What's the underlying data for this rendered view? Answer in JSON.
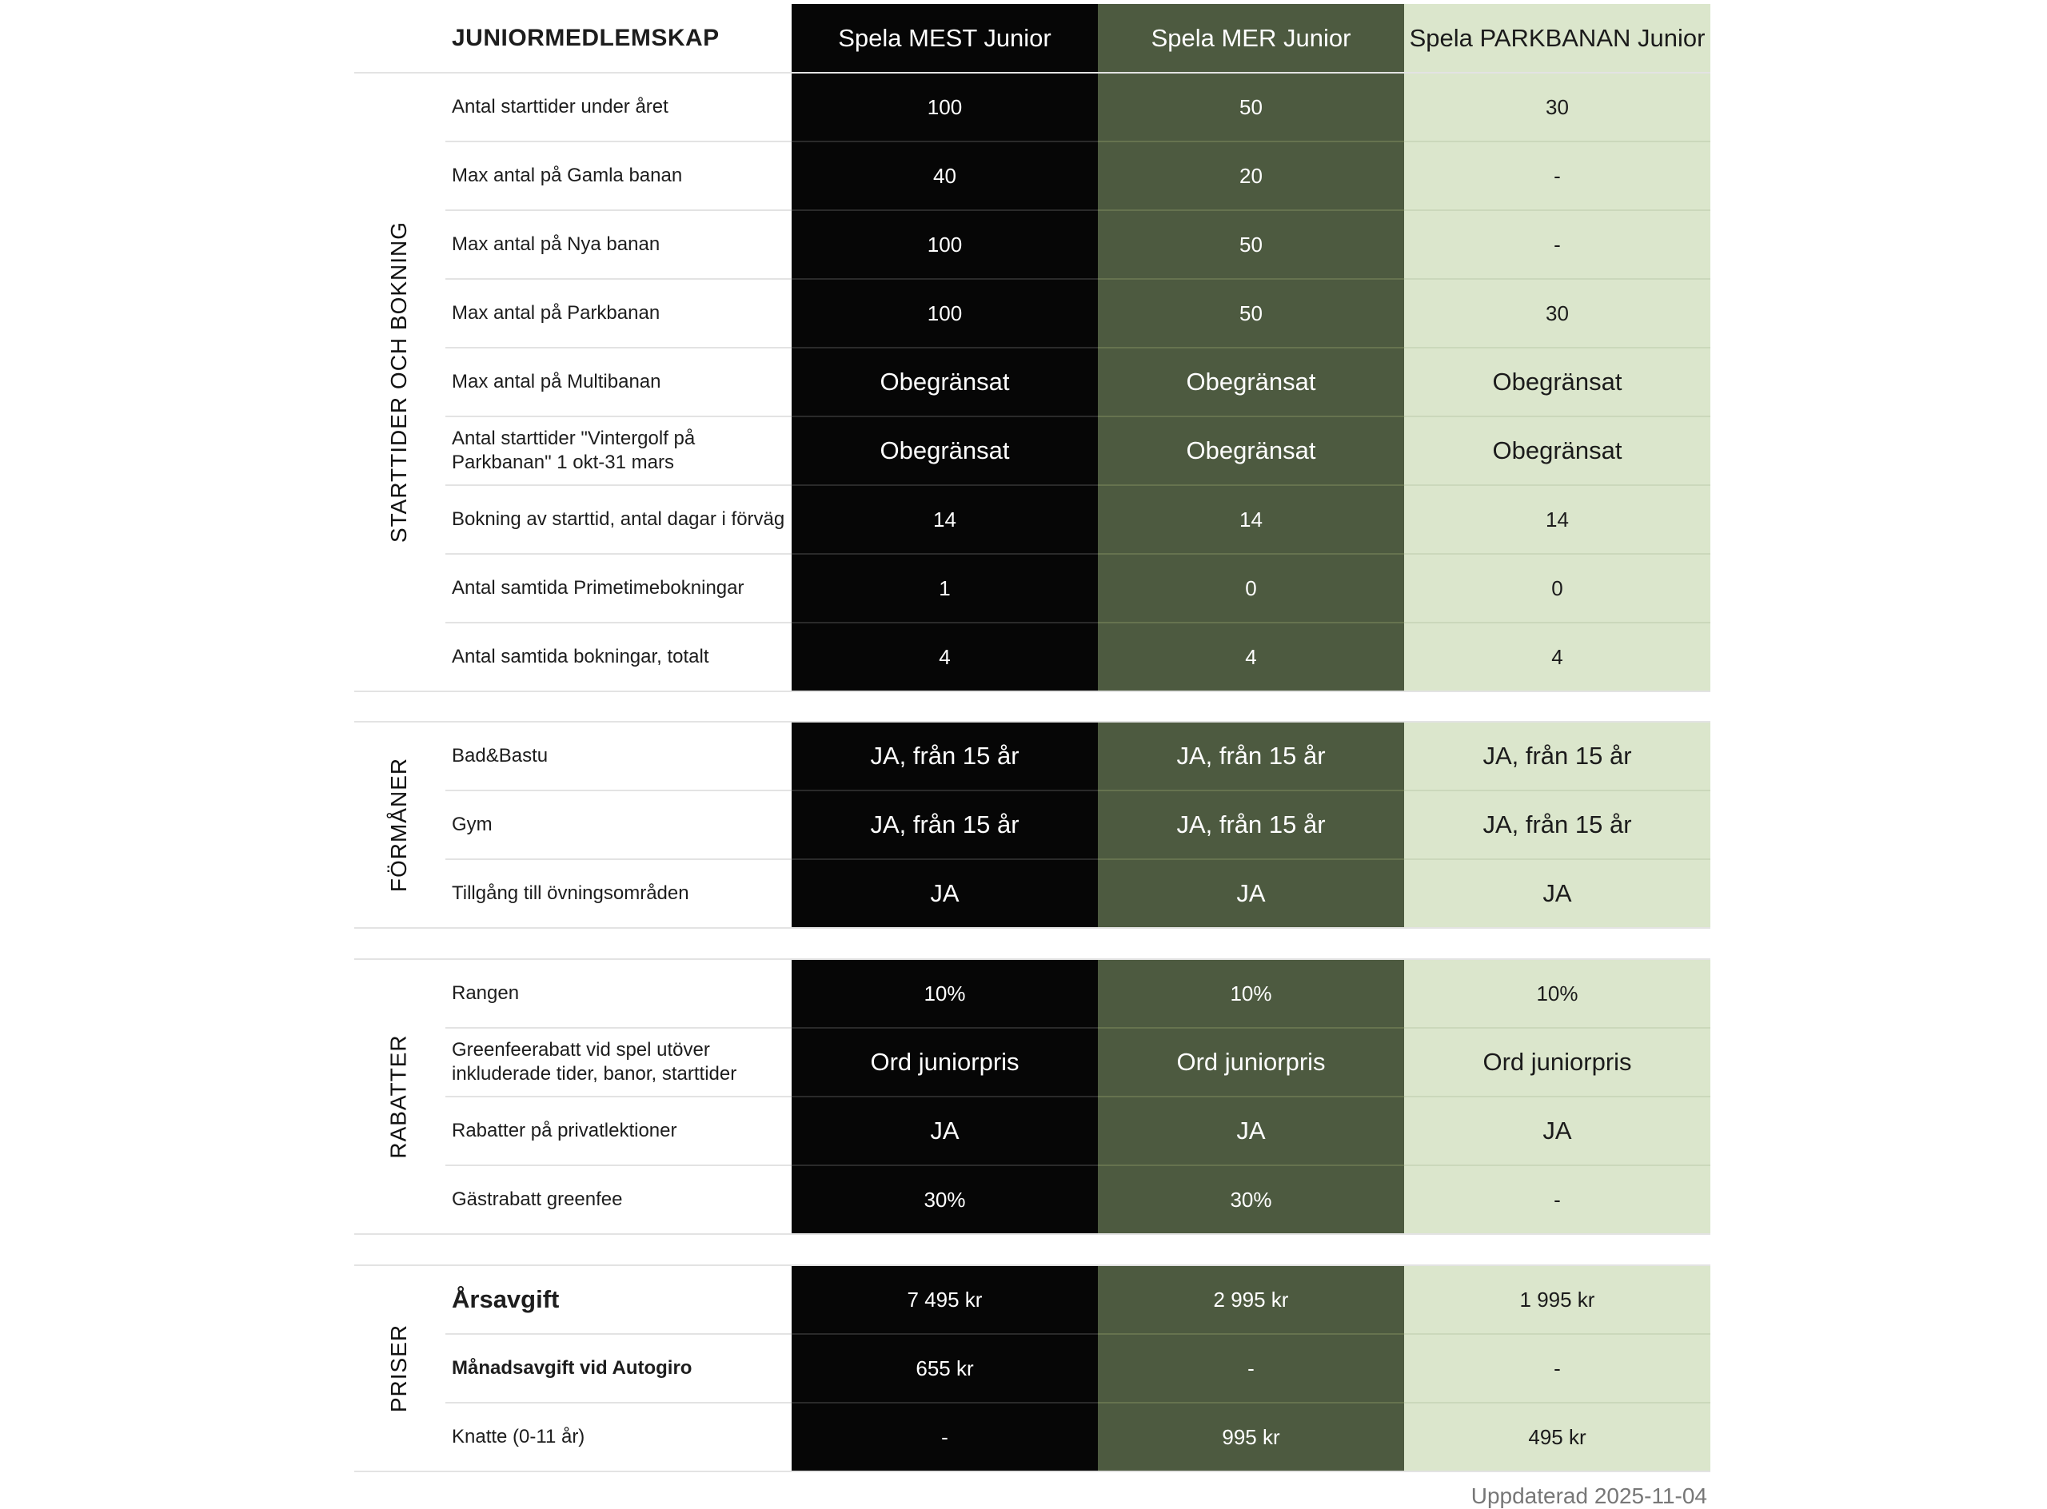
{
  "table": {
    "title": "JUNIORMEDLEMSKAP",
    "columns": [
      "Spela MEST Junior",
      "Spela MER Junior",
      "Spela PARKBANAN Junior"
    ],
    "sections": [
      {
        "name": "STARTTIDER OCH BOKNING",
        "rows": [
          {
            "label": "Antal starttider under året",
            "values": [
              "100",
              "50",
              "30"
            ]
          },
          {
            "label": "Max antal på Gamla banan",
            "values": [
              "40",
              "20",
              "-"
            ]
          },
          {
            "label": "Max antal på Nya banan",
            "values": [
              "100",
              "50",
              "-"
            ]
          },
          {
            "label": "Max antal på Parkbanan",
            "values": [
              "100",
              "50",
              "30"
            ]
          },
          {
            "label": "Max antal på Multibanan",
            "values": [
              "Obegränsat",
              "Obegränsat",
              "Obegränsat"
            ]
          },
          {
            "label": "Antal starttider \"Vintergolf på Parkbanan\" 1 okt-31 mars",
            "values": [
              "Obegränsat",
              "Obegränsat",
              "Obegränsat"
            ]
          },
          {
            "label": "Bokning av starttid, antal dagar i förväg",
            "values": [
              "14",
              "14",
              "14"
            ]
          },
          {
            "label": "Antal samtida Primetimebokningar",
            "values": [
              "1",
              "0",
              "0"
            ]
          },
          {
            "label": "Antal samtida bokningar, totalt",
            "values": [
              "4",
              "4",
              "4"
            ]
          }
        ]
      },
      {
        "name": "FÖRMÅNER",
        "rows": [
          {
            "label": "Bad&Bastu",
            "values": [
              "JA, från 15 år",
              "JA, från 15 år",
              "JA, från 15 år"
            ]
          },
          {
            "label": "Gym",
            "values": [
              "JA, från 15 år",
              "JA, från 15 år",
              "JA, från 15 år"
            ]
          },
          {
            "label": "Tillgång till övningsområden",
            "values": [
              "JA",
              "JA",
              "JA"
            ]
          }
        ]
      },
      {
        "name": "RABATTER",
        "rows": [
          {
            "label": "Rangen",
            "values": [
              "10%",
              "10%",
              "10%"
            ]
          },
          {
            "label": "Greenfeerabatt vid spel utöver inkluderade tider, banor, starttider",
            "values": [
              "Ord juniorpris",
              "Ord juniorpris",
              "Ord juniorpris"
            ]
          },
          {
            "label": "Rabatter på privatlektioner",
            "values": [
              "JA",
              "JA",
              "JA"
            ]
          },
          {
            "label": "Gästrabatt greenfee",
            "values": [
              "30%",
              "30%",
              "-"
            ]
          }
        ]
      },
      {
        "name": "PRISER",
        "rows": [
          {
            "label": "Årsavgift",
            "values": [
              "7 495 kr",
              "2 995 kr",
              "1 995 kr"
            ]
          },
          {
            "label": "Månadsavgift vid Autogiro",
            "values": [
              "655 kr",
              "-",
              "-"
            ]
          },
          {
            "label": "Knatte (0-11 år)",
            "values": [
              "-",
              "995 kr",
              "495 kr"
            ]
          }
        ]
      }
    ],
    "updated": "Uppdaterad 2025-11-04"
  },
  "colors": {
    "col1": "#060606",
    "col2": "#4d5a40",
    "col3": "#dbe6cc"
  }
}
